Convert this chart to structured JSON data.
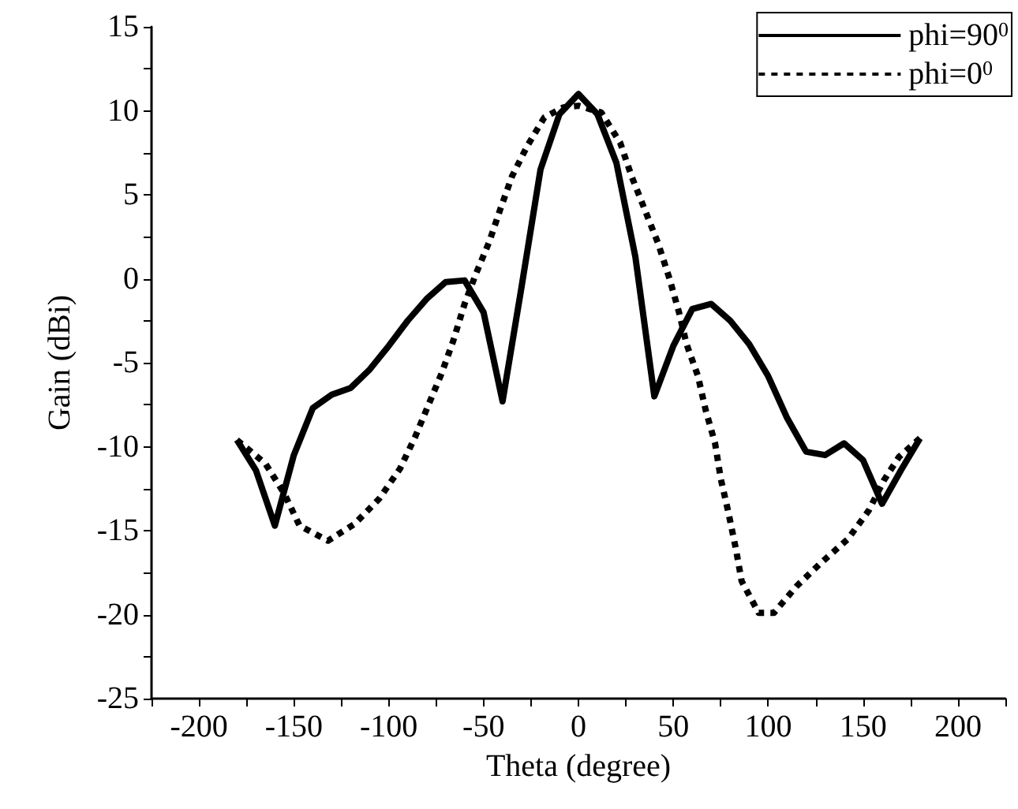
{
  "chart_data": {
    "type": "line",
    "xlabel": "Theta (degree)",
    "ylabel": "Gain (dBi)",
    "xlim": [
      -225,
      225
    ],
    "xticks": [
      -200,
      -150,
      -100,
      -50,
      0,
      50,
      100,
      150,
      200
    ],
    "ylim": [
      -25,
      15
    ],
    "yticks": [
      -25,
      -20,
      -15,
      -10,
      -5,
      0,
      5,
      10,
      15
    ],
    "grid": false,
    "legend": "top right",
    "marker": "none",
    "series": [
      {
        "name": "phi=90$^{0}$",
        "color": "#000000",
        "line_style": "solid",
        "x": [
          -180,
          -170,
          -160,
          -150,
          -140,
          -130,
          -120,
          -110,
          -100,
          -90,
          -80,
          -70,
          -60,
          -50,
          -40,
          -30,
          -20,
          -10,
          0,
          10,
          20,
          30,
          40,
          50,
          60,
          70,
          80,
          90,
          100,
          110,
          120,
          130,
          140,
          150,
          160,
          170,
          180
        ],
        "values": [
          -9.6,
          -11.4,
          -14.7,
          -10.5,
          -7.7,
          -6.9,
          -6.5,
          -5.4,
          -4.0,
          -2.5,
          -1.2,
          -0.2,
          -0.1,
          -2.0,
          -7.3,
          -0.5,
          6.5,
          9.8,
          11,
          9.8,
          6.9,
          1.3,
          -7.0,
          -4.0,
          -1.8,
          -1.5,
          -2.5,
          -3.9,
          -5.8,
          -8.3,
          -10.3,
          -10.5,
          -9.8,
          -10.8,
          -13.4,
          -11.4,
          -9.5
        ]
      },
      {
        "name": "phi=0$^{0}$",
        "color": "#000000",
        "line_style": "dashed",
        "x": [
          -180,
          -165,
          -155,
          -147,
          -132,
          -118,
          -105,
          -94,
          -86,
          -79,
          -72,
          -66,
          -60,
          -54,
          -47,
          -41,
          -35,
          -27,
          -18,
          -8,
          0,
          12,
          22,
          28,
          35,
          42,
          48,
          53,
          57,
          63,
          67,
          72,
          75,
          79,
          83,
          86,
          95,
          103,
          115,
          128,
          142,
          153,
          161,
          169,
          180
        ],
        "values": [
          -9.6,
          -11.0,
          -12.8,
          -14.7,
          -15.6,
          -14.6,
          -13.1,
          -11.3,
          -9.4,
          -7.5,
          -5.6,
          -3.7,
          -1.5,
          0.3,
          2.2,
          4.2,
          6.1,
          7.9,
          9.6,
          10.2,
          10.3,
          9.9,
          8.1,
          6.1,
          4.1,
          2.1,
          0.0,
          -2.0,
          -3.9,
          -5.8,
          -7.8,
          -9.8,
          -11.9,
          -13.9,
          -16.1,
          -18.0,
          -19.9,
          -19.9,
          -18.3,
          -16.9,
          -15.5,
          -13.8,
          -12.0,
          -10.6,
          -9.5
        ]
      }
    ]
  }
}
